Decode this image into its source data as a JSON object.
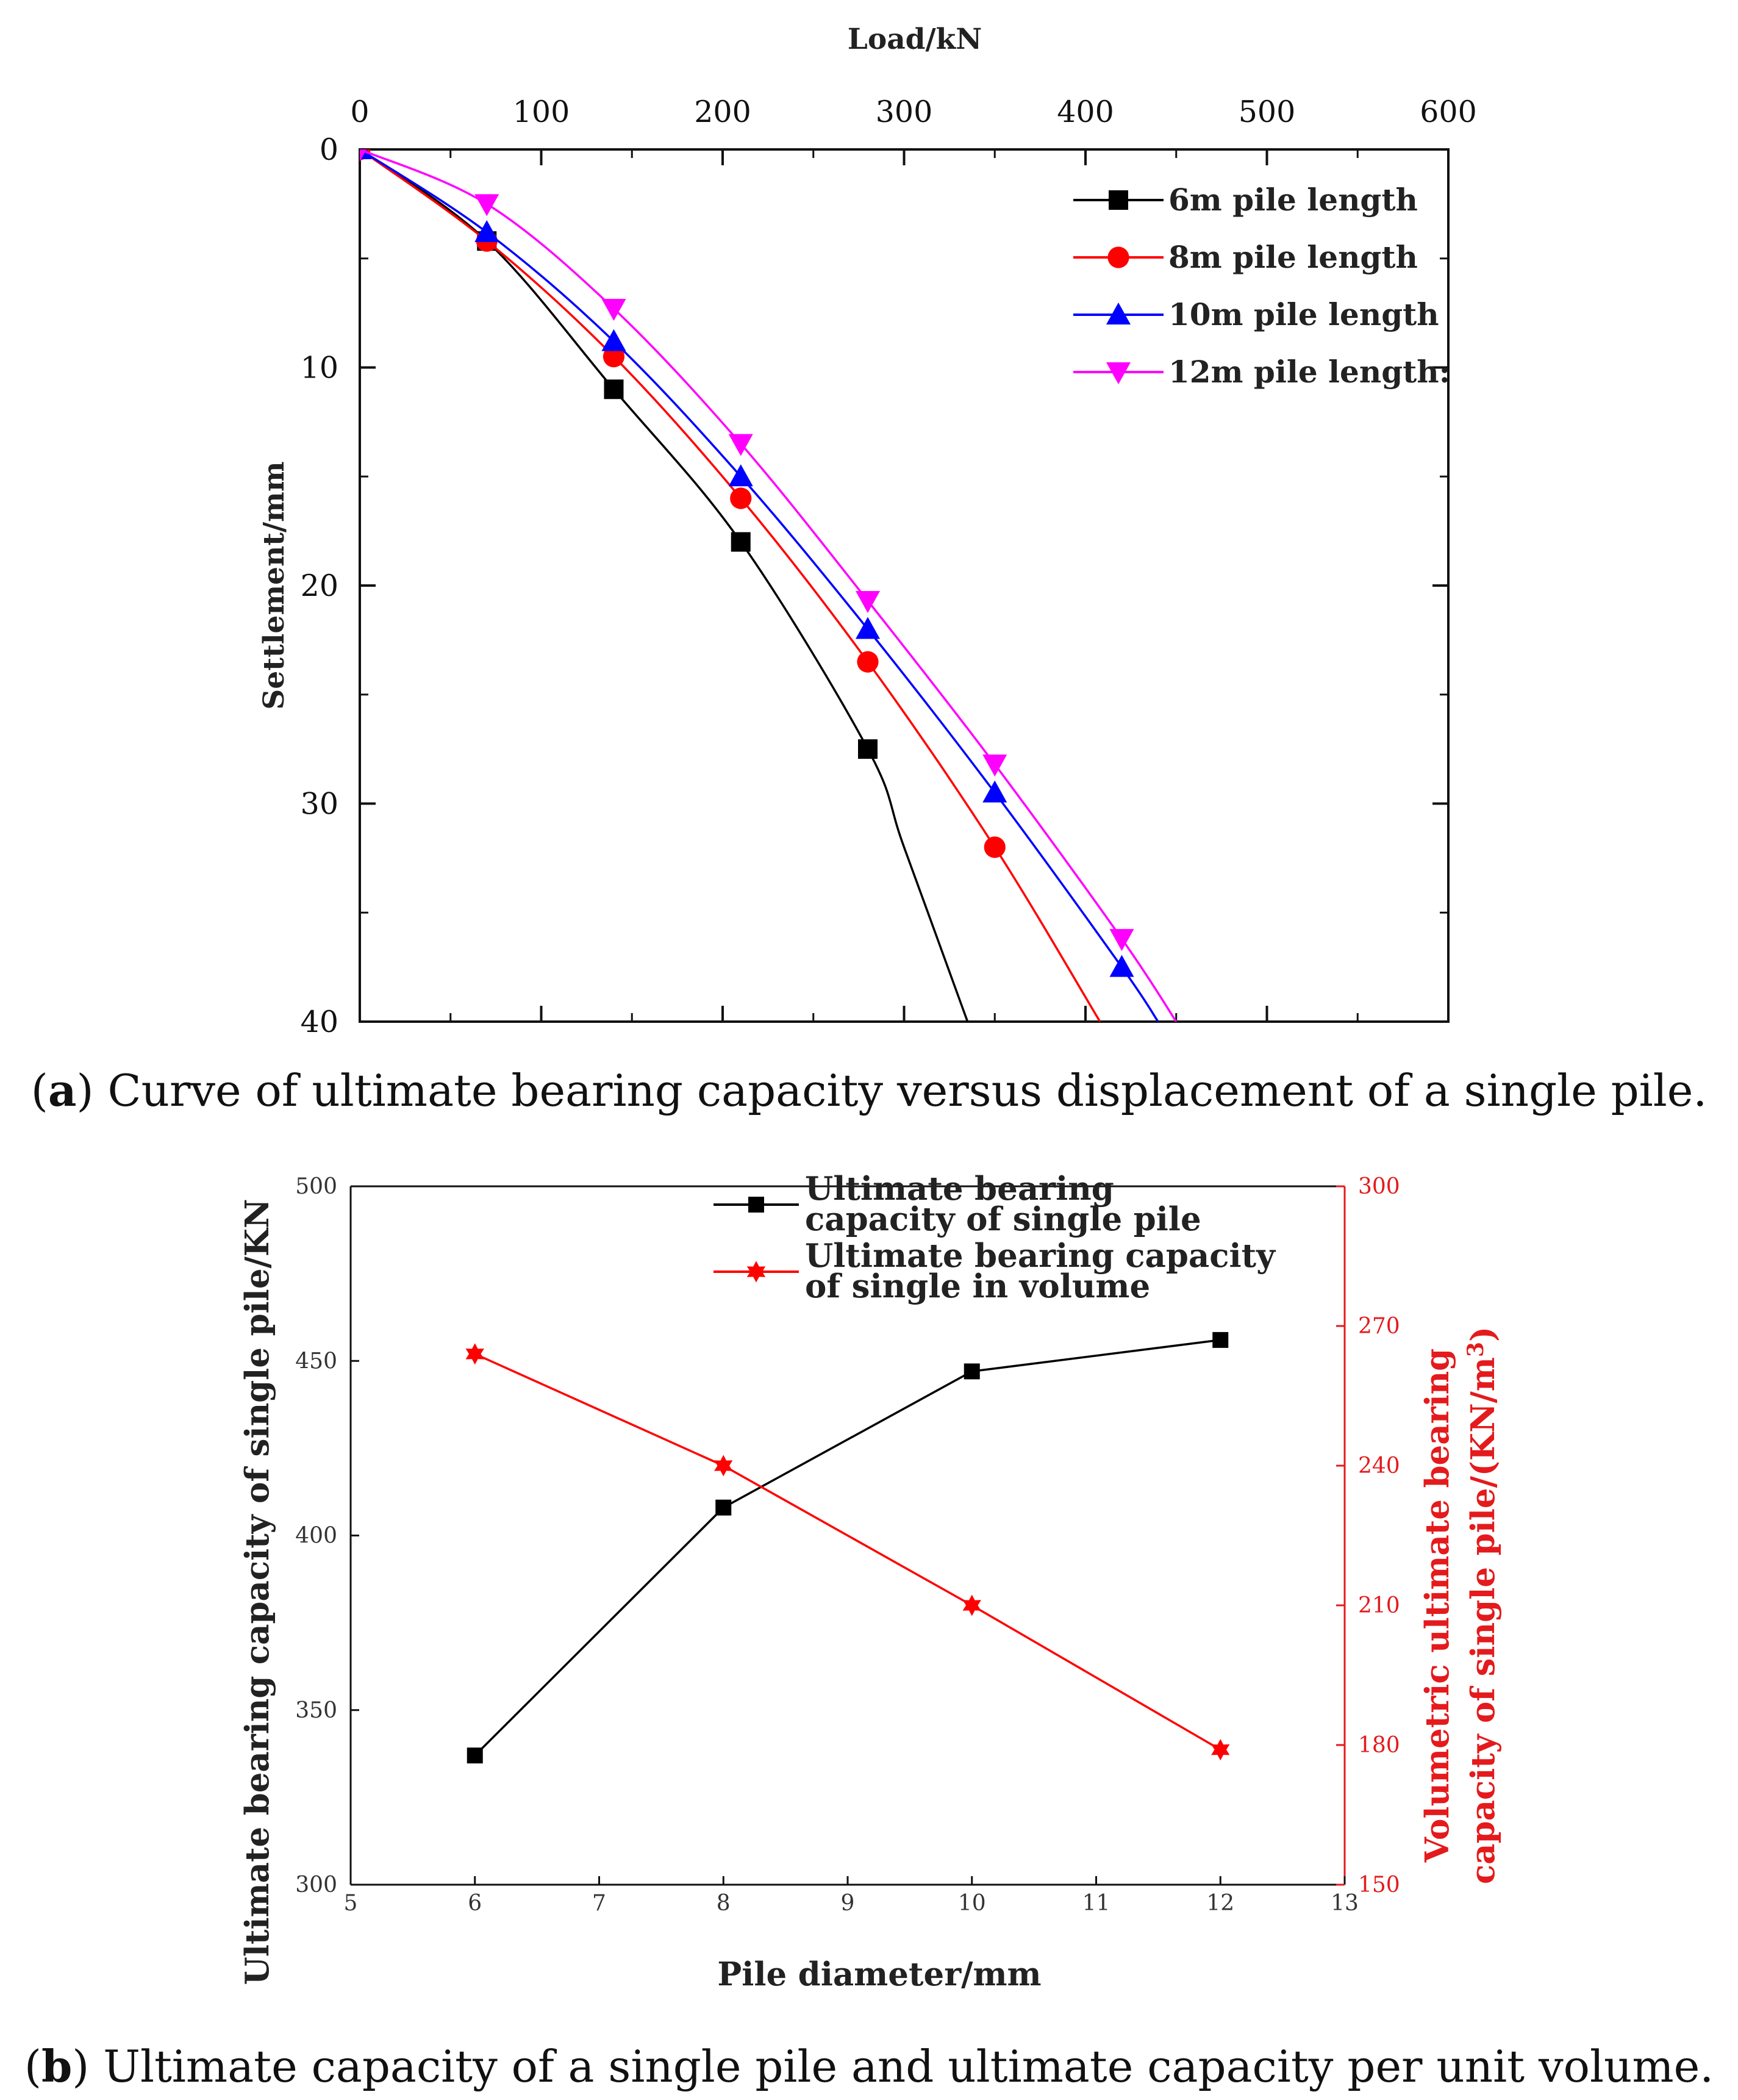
{
  "chart_data": [
    {
      "type": "line",
      "panel": "a",
      "title": "",
      "xlabel": "Load/kN",
      "ylabel": "Settlement/mm",
      "xlim": [
        0,
        600
      ],
      "ylim": [
        0,
        40
      ],
      "y_inverted": true,
      "x_axis_position": "top",
      "xticks": [
        0,
        100,
        200,
        300,
        400,
        500,
        600
      ],
      "yticks": [
        0,
        10,
        20,
        30,
        40
      ],
      "legend_position": "top-right",
      "series": [
        {
          "name": "6m pile length",
          "color": "#000000",
          "marker": "square",
          "markers": [
            [
              0,
              0
            ],
            [
              70,
              4.2
            ],
            [
              140,
              11
            ],
            [
              210,
              18
            ],
            [
              280,
              27.5
            ]
          ],
          "curve": [
            [
              0,
              0
            ],
            [
              70,
              4.2
            ],
            [
              140,
              11
            ],
            [
              210,
              18
            ],
            [
              280,
              27.5
            ],
            [
              300,
              32
            ],
            [
              335,
              40
            ]
          ]
        },
        {
          "name": "8m pile length",
          "color": "#ff0000",
          "marker": "circle",
          "markers": [
            [
              0,
              0
            ],
            [
              70,
              4.2
            ],
            [
              140,
              9.5
            ],
            [
              210,
              16
            ],
            [
              280,
              23.5
            ],
            [
              350,
              32
            ]
          ],
          "curve": [
            [
              0,
              0
            ],
            [
              70,
              4.2
            ],
            [
              140,
              9.5
            ],
            [
              210,
              16
            ],
            [
              280,
              23.5
            ],
            [
              350,
              32
            ],
            [
              408,
              40
            ]
          ]
        },
        {
          "name": "10m pile length",
          "color": "#0000ff",
          "marker": "triangle-up",
          "markers": [
            [
              0,
              0
            ],
            [
              70,
              3.8
            ],
            [
              140,
              8.8
            ],
            [
              210,
              15
            ],
            [
              280,
              22
            ],
            [
              350,
              29.5
            ],
            [
              420,
              37.5
            ]
          ],
          "curve": [
            [
              0,
              0
            ],
            [
              70,
              3.8
            ],
            [
              140,
              8.8
            ],
            [
              210,
              15
            ],
            [
              280,
              22
            ],
            [
              350,
              29.5
            ],
            [
              420,
              37.5
            ],
            [
              440,
              40
            ]
          ]
        },
        {
          "name": "12m pile length:",
          "color": "#ff00ff",
          "marker": "triangle-down",
          "markers": [
            [
              0,
              0
            ],
            [
              70,
              2.5
            ],
            [
              140,
              7.3
            ],
            [
              210,
              13.5
            ],
            [
              280,
              20.7
            ],
            [
              350,
              28.2
            ],
            [
              420,
              36.2
            ]
          ],
          "curve": [
            [
              0,
              0
            ],
            [
              70,
              2.5
            ],
            [
              140,
              7.3
            ],
            [
              210,
              13.5
            ],
            [
              280,
              20.7
            ],
            [
              350,
              28.2
            ],
            [
              420,
              36.2
            ],
            [
              450,
              40
            ]
          ]
        }
      ]
    },
    {
      "type": "line",
      "panel": "b",
      "title": "",
      "xlabel": "Pile diameter/mm",
      "ylabel": "Ultimate bearing capacity of single pile/KN",
      "ylabel_right": [
        "Volumetric ultimate bearing",
        "capacity of single pile/(KN/m",
        "3",
        ")"
      ],
      "xlim": [
        5,
        13
      ],
      "ylim": [
        300,
        500
      ],
      "ylim_right": [
        150,
        300
      ],
      "xticks": [
        5,
        6,
        7,
        8,
        9,
        10,
        11,
        12,
        13
      ],
      "yticks": [
        300,
        350,
        400,
        450,
        500
      ],
      "yticks_right": [
        150,
        180,
        210,
        240,
        270,
        300
      ],
      "legend_position": "top-center",
      "series": [
        {
          "name": [
            "Ultimate bearing",
            "capacity of single pile"
          ],
          "axis": "left",
          "color": "#000000",
          "marker": "square",
          "x": [
            6,
            8,
            10,
            12
          ],
          "values": [
            337,
            408,
            447,
            456
          ]
        },
        {
          "name": [
            "Ultimate bearing capacity",
            "of single in volume"
          ],
          "axis": "right",
          "color": "#ff0000",
          "marker": "star",
          "x": [
            6,
            8,
            10,
            12
          ],
          "values": [
            264,
            240,
            210,
            179
          ]
        }
      ]
    }
  ],
  "captions": {
    "a": {
      "letter": "a",
      "text": "Curve of ultimate bearing capacity versus displacement of a single pile."
    },
    "b": {
      "letter": "b",
      "text": "Ultimate capacity of a single pile and ultimate capacity per unit volume."
    }
  }
}
